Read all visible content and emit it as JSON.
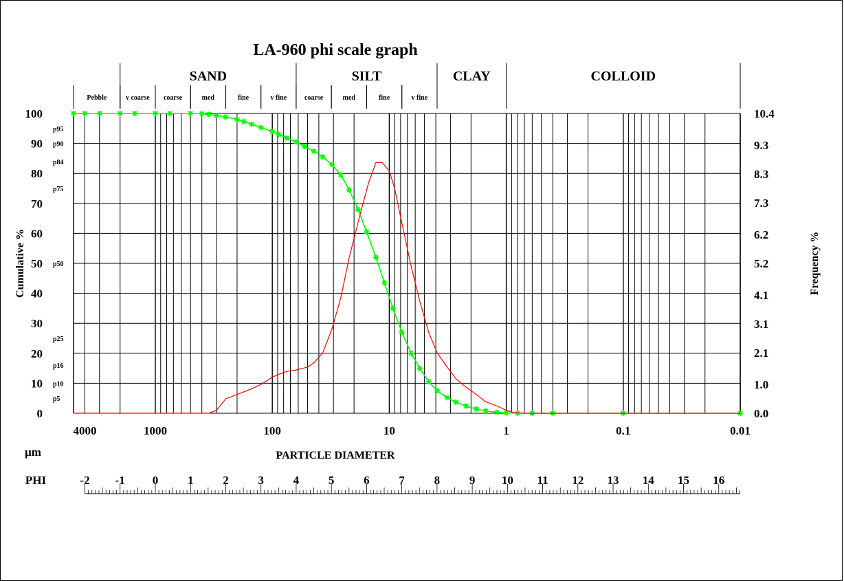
{
  "chart_data": {
    "type": "line",
    "title": "LA-960 phi scale graph",
    "xlabel": "PARTICLE DIAMETER",
    "xlabel_unit": "µm",
    "ylabel_left": "Cumulative %",
    "ylabel_right": "Frequency %",
    "x_scale": "log",
    "x_reversed": true,
    "xlim": [
      5000,
      0.01
    ],
    "ylim_left": [
      0,
      100
    ],
    "ylim_right": [
      0,
      10.4
    ],
    "grid": true,
    "x_tick_labels": [
      {
        "value": 4000,
        "label": "4000"
      },
      {
        "value": 1000,
        "label": "1000"
      },
      {
        "value": 100,
        "label": "100"
      },
      {
        "value": 10,
        "label": "10"
      },
      {
        "value": 1,
        "label": "1"
      },
      {
        "value": 0.1,
        "label": "0.1"
      },
      {
        "value": 0.01,
        "label": "0.01"
      }
    ],
    "y_left_ticks": [
      "0",
      "10",
      "20",
      "30",
      "40",
      "50",
      "60",
      "70",
      "80",
      "90",
      "100"
    ],
    "y_right_ticks": [
      "0.0",
      "1.0",
      "2.1",
      "3.1",
      "4.1",
      "5.2",
      "6.2",
      "7.3",
      "8.3",
      "9.3",
      "10.4"
    ],
    "percentile_labels": [
      {
        "label": "p95",
        "value": 95
      },
      {
        "label": "p90",
        "value": 90
      },
      {
        "label": "p84",
        "value": 84
      },
      {
        "label": "p75",
        "value": 75
      },
      {
        "label": "p50",
        "value": 50
      },
      {
        "label": "p25",
        "value": 25
      },
      {
        "label": "p16",
        "value": 16
      },
      {
        "label": "p10",
        "value": 10
      },
      {
        "label": "p5",
        "value": 5
      }
    ],
    "categories": [
      {
        "label": "SAND",
        "from": 2000,
        "to": 62.5
      },
      {
        "label": "SILT",
        "from": 62.5,
        "to": 3.9
      },
      {
        "label": "CLAY",
        "from": 3.9,
        "to": 1
      },
      {
        "label": "COLLOID",
        "from": 1,
        "to": 0.01
      }
    ],
    "subcategories": [
      {
        "label": "Pebble",
        "from": 5000,
        "to": 2000
      },
      {
        "label": "v coarse",
        "from": 2000,
        "to": 1000
      },
      {
        "label": "coarse",
        "from": 1000,
        "to": 500
      },
      {
        "label": "med",
        "from": 500,
        "to": 250
      },
      {
        "label": "fine",
        "from": 250,
        "to": 125
      },
      {
        "label": "v fine",
        "from": 125,
        "to": 62.5
      },
      {
        "label": "coarse",
        "from": 62.5,
        "to": 31.25
      },
      {
        "label": "med",
        "from": 31.25,
        "to": 15.6
      },
      {
        "label": "fine",
        "from": 15.6,
        "to": 7.8
      },
      {
        "label": "v fine",
        "from": 7.8,
        "to": 3.9
      }
    ],
    "phi_scale": {
      "label": "PHI",
      "ticks": [
        "-2",
        "-1",
        "0",
        "1",
        "2",
        "3",
        "4",
        "5",
        "6",
        "7",
        "8",
        "9",
        "10",
        "11",
        "12",
        "13",
        "14",
        "15",
        "16"
      ]
    },
    "series": [
      {
        "axis": "left",
        "color": "#00ff00",
        "marker": "star",
        "x": [
          5000,
          4000,
          3000,
          2000,
          1500,
          1000,
          750,
          500,
          400,
          350,
          300,
          250,
          200,
          175,
          150,
          125,
          100,
          88,
          75,
          62.5,
          53,
          44,
          37,
          31,
          26,
          22,
          18.5,
          15.6,
          13,
          11,
          9.3,
          7.8,
          6.5,
          5.5,
          4.6,
          3.9,
          3.2,
          2.7,
          2.2,
          1.8,
          1.5,
          1.2,
          1.0,
          0.8,
          0.6,
          0.4,
          0.1,
          0.01
        ],
        "values": [
          100,
          100,
          100,
          100,
          100,
          100,
          100,
          100,
          99.9,
          99.7,
          99.3,
          98.8,
          98.0,
          97.3,
          96.4,
          95.3,
          94.0,
          93.0,
          91.8,
          90.5,
          89.0,
          87.4,
          85.5,
          83.0,
          79.5,
          74.5,
          68.0,
          60.5,
          52.0,
          43.5,
          35.0,
          27.0,
          20.0,
          15.0,
          10.5,
          7.5,
          5.2,
          3.7,
          2.4,
          1.4,
          0.8,
          0.3,
          0.1,
          0.0,
          0.0,
          0.0,
          0.0,
          0.0
        ]
      },
      {
        "axis": "right",
        "color": "#ff0000",
        "x": [
          5000,
          1000,
          500,
          350,
          300,
          250,
          200,
          150,
          125,
          100,
          88,
          75,
          62.5,
          50,
          44,
          37,
          31,
          26,
          22,
          18,
          15,
          13,
          11.5,
          10,
          9,
          7.8,
          6.5,
          5.5,
          4.6,
          3.9,
          3.2,
          2.7,
          2.2,
          1.8,
          1.5,
          1.2,
          1.0,
          0.85,
          0.7,
          0.6,
          0.01
        ],
        "values": [
          0.0,
          0.0,
          0.0,
          0.0,
          0.1,
          0.5,
          0.65,
          0.85,
          1.0,
          1.25,
          1.35,
          1.45,
          1.5,
          1.6,
          1.75,
          2.1,
          2.9,
          4.0,
          5.4,
          6.8,
          8.0,
          8.7,
          8.7,
          8.4,
          7.8,
          6.6,
          5.1,
          3.9,
          2.8,
          2.1,
          1.6,
          1.2,
          0.9,
          0.65,
          0.4,
          0.25,
          0.1,
          0.02,
          0.0,
          0.0,
          0.0
        ]
      }
    ]
  }
}
